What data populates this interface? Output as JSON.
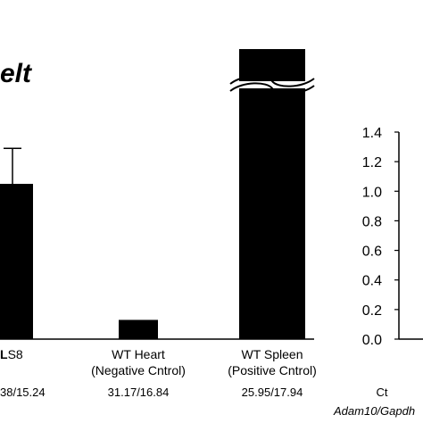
{
  "chart_data": [
    {
      "type": "bar",
      "title": "Relt",
      "title_visible": "elt",
      "title_partial_bold": "R",
      "categories": [
        "LS8",
        "WT Heart",
        "WT Spleen"
      ],
      "category_label_lines": [
        [
          "LS8",
          ""
        ],
        [
          "WT Heart",
          "(Negative Cntrol)"
        ],
        [
          "WT Spleen",
          "(Positive Cntrol)"
        ]
      ],
      "category_label_visible": [
        "LS8",
        "WT Heart",
        "WT Spleen"
      ],
      "values": [
        1.05,
        0.13,
        1.4
      ],
      "error": [
        0.24,
        null,
        null
      ],
      "axis_break_on": "WT Spleen",
      "ct_values": [
        "38/15.24",
        "31.17/16.84",
        "25.95/17.94"
      ],
      "ct_visible": [
        "38/15.24",
        "31.17/16.84",
        "25.95/17.94"
      ],
      "ylim": [
        0,
        1.4
      ],
      "colors": {
        "bar": "#000000"
      }
    },
    {
      "type": "bar",
      "title": "",
      "ylim": [
        0,
        1.4
      ],
      "yticks": [
        "1.4",
        "1.2",
        "1.0",
        "0.8",
        "0.6",
        "0.4",
        "0.2",
        "0.0"
      ],
      "ct_row_label": "Ct",
      "ct_row_sublabel": "Adam10/Gapdh",
      "categories": [],
      "values": []
    }
  ]
}
